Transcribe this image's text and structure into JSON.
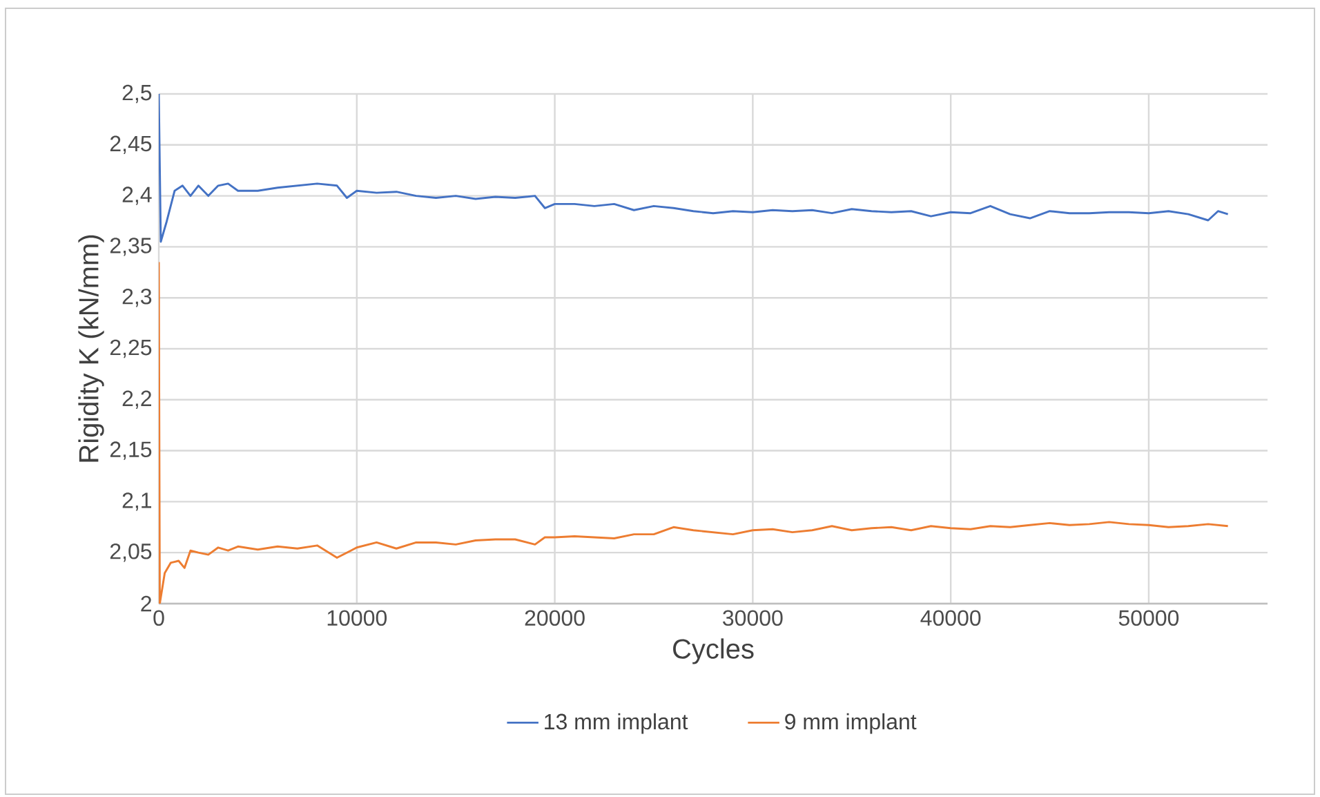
{
  "chart_data": {
    "type": "line",
    "xlabel": "Cycles",
    "ylabel": "Rigidity K (kN/mm)",
    "xlim": [
      0,
      56000
    ],
    "xticks": [
      0,
      10000,
      20000,
      30000,
      40000,
      50000
    ],
    "ylim": [
      2,
      2.5
    ],
    "yticks": [
      {
        "value": 2,
        "label": "2"
      },
      {
        "value": 2.05,
        "label": "2,05"
      },
      {
        "value": 2.1,
        "label": "2,1"
      },
      {
        "value": 2.15,
        "label": "2,15"
      },
      {
        "value": 2.2,
        "label": "2,2"
      },
      {
        "value": 2.25,
        "label": "2,25"
      },
      {
        "value": 2.3,
        "label": "2,3"
      },
      {
        "value": 2.35,
        "label": "2,35"
      },
      {
        "value": 2.4,
        "label": "2,4"
      },
      {
        "value": 2.45,
        "label": "2,45"
      },
      {
        "value": 2.5,
        "label": "2,5"
      }
    ],
    "grid": true,
    "legend": "bottom",
    "marker": "none",
    "line_style": "solid",
    "series": [
      {
        "name": "13 mm implant",
        "color": "#4472c4",
        "x": [
          0,
          100,
          400,
          800,
          1200,
          1600,
          2000,
          2500,
          3000,
          3500,
          4000,
          5000,
          6000,
          7000,
          8000,
          9000,
          9500,
          10000,
          11000,
          12000,
          13000,
          14000,
          15000,
          16000,
          17000,
          18000,
          19000,
          19500,
          20000,
          21000,
          22000,
          23000,
          24000,
          25000,
          26000,
          27000,
          28000,
          29000,
          30000,
          31000,
          32000,
          33000,
          34000,
          35000,
          36000,
          37000,
          38000,
          39000,
          40000,
          41000,
          42000,
          43000,
          44000,
          45000,
          46000,
          47000,
          48000,
          49000,
          50000,
          51000,
          52000,
          53000,
          53500,
          54000
        ],
        "values": [
          2.5,
          2.355,
          2.375,
          2.405,
          2.41,
          2.4,
          2.41,
          2.4,
          2.41,
          2.412,
          2.405,
          2.405,
          2.408,
          2.41,
          2.412,
          2.41,
          2.398,
          2.405,
          2.403,
          2.404,
          2.4,
          2.398,
          2.4,
          2.397,
          2.399,
          2.398,
          2.4,
          2.388,
          2.392,
          2.392,
          2.39,
          2.392,
          2.386,
          2.39,
          2.388,
          2.385,
          2.383,
          2.385,
          2.384,
          2.386,
          2.385,
          2.386,
          2.383,
          2.387,
          2.385,
          2.384,
          2.385,
          2.38,
          2.384,
          2.383,
          2.39,
          2.382,
          2.378,
          2.385,
          2.383,
          2.383,
          2.384,
          2.384,
          2.383,
          2.385,
          2.382,
          2.376,
          2.385,
          2.382
        ]
      },
      {
        "name": "9 mm implant",
        "color": "#ed7d31",
        "x": [
          0,
          50,
          300,
          600,
          1000,
          1300,
          1600,
          2000,
          2500,
          3000,
          3500,
          4000,
          5000,
          6000,
          7000,
          8000,
          9000,
          10000,
          11000,
          12000,
          13000,
          14000,
          15000,
          16000,
          17000,
          18000,
          19000,
          19500,
          20000,
          21000,
          22000,
          23000,
          24000,
          25000,
          26000,
          27000,
          28000,
          29000,
          30000,
          31000,
          32000,
          33000,
          34000,
          35000,
          36000,
          37000,
          38000,
          39000,
          40000,
          41000,
          42000,
          43000,
          44000,
          45000,
          46000,
          47000,
          48000,
          49000,
          50000,
          51000,
          52000,
          53000,
          54000
        ],
        "values": [
          2.335,
          2.0,
          2.03,
          2.04,
          2.042,
          2.035,
          2.052,
          2.05,
          2.048,
          2.055,
          2.052,
          2.056,
          2.053,
          2.056,
          2.054,
          2.057,
          2.045,
          2.055,
          2.06,
          2.054,
          2.06,
          2.06,
          2.058,
          2.062,
          2.063,
          2.063,
          2.058,
          2.065,
          2.065,
          2.066,
          2.065,
          2.064,
          2.068,
          2.068,
          2.075,
          2.072,
          2.07,
          2.068,
          2.072,
          2.073,
          2.07,
          2.072,
          2.076,
          2.072,
          2.074,
          2.075,
          2.072,
          2.076,
          2.074,
          2.073,
          2.076,
          2.075,
          2.077,
          2.079,
          2.077,
          2.078,
          2.08,
          2.078,
          2.077,
          2.075,
          2.076,
          2.078,
          2.076
        ]
      }
    ]
  }
}
